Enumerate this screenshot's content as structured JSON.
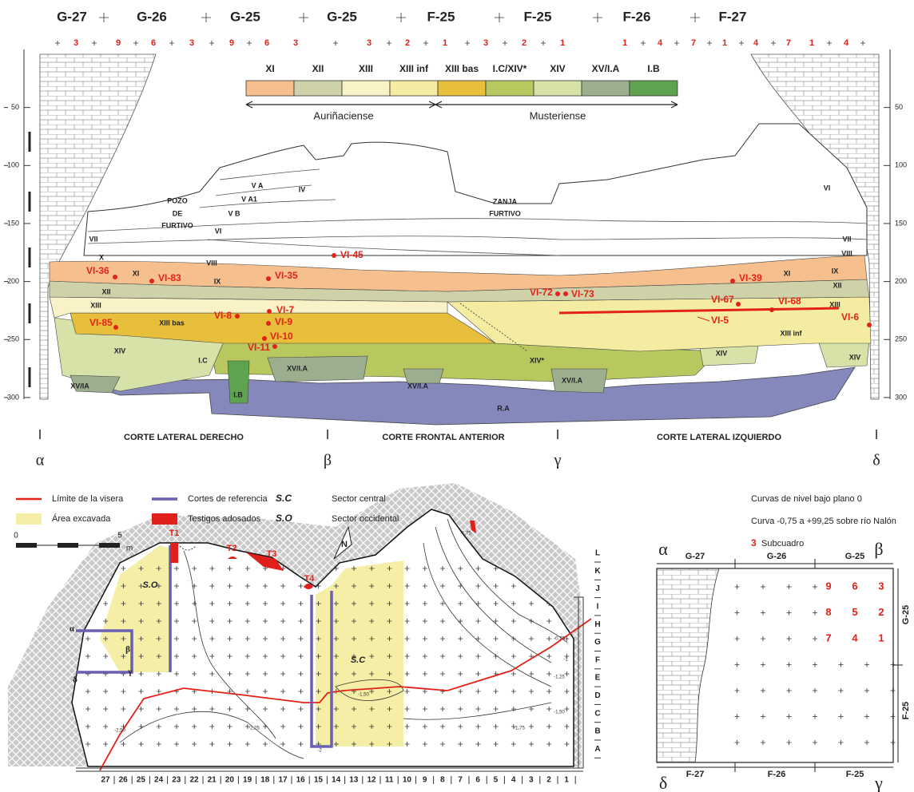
{
  "section": {
    "top_squares": [
      "G-27",
      "G-26",
      "G-25",
      "G-25",
      "F-25",
      "F-25",
      "F-26",
      "F-27"
    ],
    "subsquares": [
      "3",
      "9",
      "6",
      "3",
      "9",
      "6",
      "3",
      "3",
      "2",
      "1",
      "3",
      "2",
      "1",
      "1",
      "4",
      "7",
      "1",
      "4",
      "7",
      "1",
      "4"
    ],
    "depth_ticks": [
      50,
      100,
      150,
      200,
      250,
      300
    ],
    "legend": {
      "levels": [
        {
          "label": "XI",
          "color": "#f6c08e"
        },
        {
          "label": "XII",
          "color": "#cfd1a8"
        },
        {
          "label": "XIII",
          "color": "#f8f2c6"
        },
        {
          "label": "XIII inf",
          "color": "#f4eca0"
        },
        {
          "label": "XIII bas",
          "color": "#e8bf3a"
        },
        {
          "label": "I.C/XIV*",
          "color": "#b8c75e"
        },
        {
          "label": "XIV",
          "color": "#d7e2a8"
        },
        {
          "label": "XV/I.A",
          "color": "#9bae8d"
        },
        {
          "label": "I.B",
          "color": "#5fa350"
        }
      ],
      "periods": [
        "Auriñaciense",
        "Musteriense"
      ]
    },
    "strata_labels": [
      "IV",
      "V A",
      "V A1",
      "V B",
      "VI",
      "POZO",
      "DE",
      "FURTIVO",
      "VII",
      "VIII",
      "IX",
      "X",
      "XI",
      "XII",
      "XIII",
      "XIII bas",
      "XIV",
      "XV/IA",
      "I.C",
      "I.B",
      "XV/I.A",
      "ZANJA",
      "FURTIVO",
      "XIV*",
      "XV/I.A",
      "R.A",
      "XV/I.A",
      "XIII inf",
      "XIV",
      "XIV",
      "VI",
      "VII",
      "VIII",
      "IX",
      "XI",
      "XII",
      "XIII"
    ],
    "samples": [
      "VI-36",
      "VI-83",
      "VI-85",
      "VI-35",
      "VI-45",
      "VI-8",
      "VI-9",
      "VI-7",
      "VI-10",
      "VI-11",
      "VI-72",
      "VI-73",
      "VI-39",
      "VI-67",
      "VI-68",
      "VI-5",
      "VI-6"
    ],
    "cuts": [
      "CORTE LATERAL DERECHO",
      "CORTE FRONTAL ANTERIOR",
      "CORTE LATERAL IZQUIERDO"
    ],
    "points": [
      "α",
      "β",
      "γ",
      "δ"
    ]
  },
  "map": {
    "legend": [
      "Límite de la visera",
      "Área excavada",
      "Cortes de referencia",
      "Testigos adosados"
    ],
    "sectors": [
      {
        "code": "S.C",
        "name": "Sector central"
      },
      {
        "code": "S.O",
        "name": "Sector occidental"
      }
    ],
    "notes": [
      "Curvas de nivel bajo plano 0",
      "Curva -0,75 a +99,25 sobre río Nalón"
    ],
    "subsquare_key": {
      "symbol": "3",
      "label": "Subcuadro"
    },
    "scale": [
      "0",
      "5",
      "m"
    ],
    "north": "N",
    "labels": [
      "T1",
      "T2",
      "T3",
      "T4",
      "S.O",
      "S.C",
      "α",
      "β",
      "γ",
      "δ"
    ],
    "contours": [
      "-0,75",
      "-1",
      "-1,25",
      "-1,50",
      "-1,75",
      "-2",
      "-2,25",
      "-2,50",
      "-1,50",
      "-1,75"
    ],
    "rows": [
      "L",
      "K",
      "J",
      "I",
      "H",
      "G",
      "F",
      "E",
      "D",
      "C",
      "B",
      "A"
    ],
    "columns": [
      "27",
      "26",
      "25",
      "24",
      "23",
      "22",
      "21",
      "20",
      "19",
      "18",
      "17",
      "16",
      "15",
      "14",
      "13",
      "12",
      "11",
      "10",
      "9",
      "8",
      "7",
      "6",
      "5",
      "4",
      "3",
      "2",
      "1"
    ]
  },
  "inset": {
    "corners": [
      "α",
      "β",
      "δ",
      "γ"
    ],
    "top": [
      "G-27",
      "G-26",
      "G-25"
    ],
    "bottom": [
      "F-27",
      "F-26",
      "F-25"
    ],
    "side": [
      "G-25",
      "F-25"
    ],
    "subsquares": [
      "9",
      "6",
      "3",
      "8",
      "5",
      "2",
      "7",
      "4",
      "1"
    ]
  }
}
